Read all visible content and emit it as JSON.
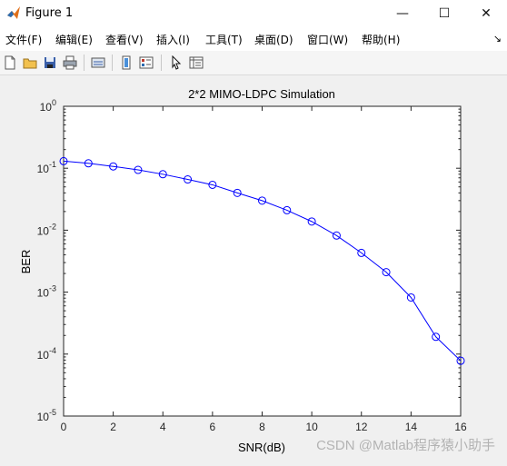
{
  "window": {
    "title": "Figure 1",
    "minimize": "—",
    "maximize": "☐",
    "close": "✕"
  },
  "menu": [
    "文件(F)",
    "编辑(E)",
    "查看(V)",
    "插入(I)",
    "工具(T)",
    "桌面(D)",
    "窗口(W)",
    "帮助(H)"
  ],
  "toolbar": {
    "icons": [
      "new-figure-icon",
      "open-file-icon",
      "save-icon",
      "print-icon",
      "link-plot-icon",
      "insert-colorbar-icon",
      "insert-legend-icon",
      "edit-plot-pointer-icon",
      "property-inspector-icon"
    ]
  },
  "watermark": "CSDN @Matlab程序猿小助手",
  "colors": {
    "line": "#0000ff",
    "axes_bg": "#ffffff",
    "figure_bg": "#f0f0f0"
  },
  "chart_data": {
    "type": "line",
    "title": "2*2 MIMO-LDPC Simulation",
    "xlabel": "SNR(dB)",
    "ylabel": "BER",
    "xlim": [
      0,
      16
    ],
    "ylim": [
      1e-05,
      1
    ],
    "yscale": "log",
    "x_ticks": [
      0,
      2,
      4,
      6,
      8,
      10,
      12,
      14,
      16
    ],
    "y_ticks": [
      {
        "value": 1,
        "base": "10",
        "exp": "0"
      },
      {
        "value": 0.1,
        "base": "10",
        "exp": "-1"
      },
      {
        "value": 0.01,
        "base": "10",
        "exp": "-2"
      },
      {
        "value": 0.001,
        "base": "10",
        "exp": "-3"
      },
      {
        "value": 0.0001,
        "base": "10",
        "exp": "-4"
      },
      {
        "value": 1e-05,
        "base": "10",
        "exp": "-5"
      }
    ],
    "grid": false,
    "marker": "circle",
    "series": [
      {
        "x": [
          0,
          1,
          2,
          3,
          4,
          5,
          6,
          7,
          8,
          9,
          10,
          11,
          12,
          13,
          14,
          15,
          16
        ],
        "values": [
          0.13,
          0.12,
          0.107,
          0.094,
          0.08,
          0.066,
          0.054,
          0.04,
          0.03,
          0.021,
          0.0138,
          0.0082,
          0.0043,
          0.0021,
          0.00082,
          0.00019,
          7.8e-05
        ]
      }
    ]
  }
}
